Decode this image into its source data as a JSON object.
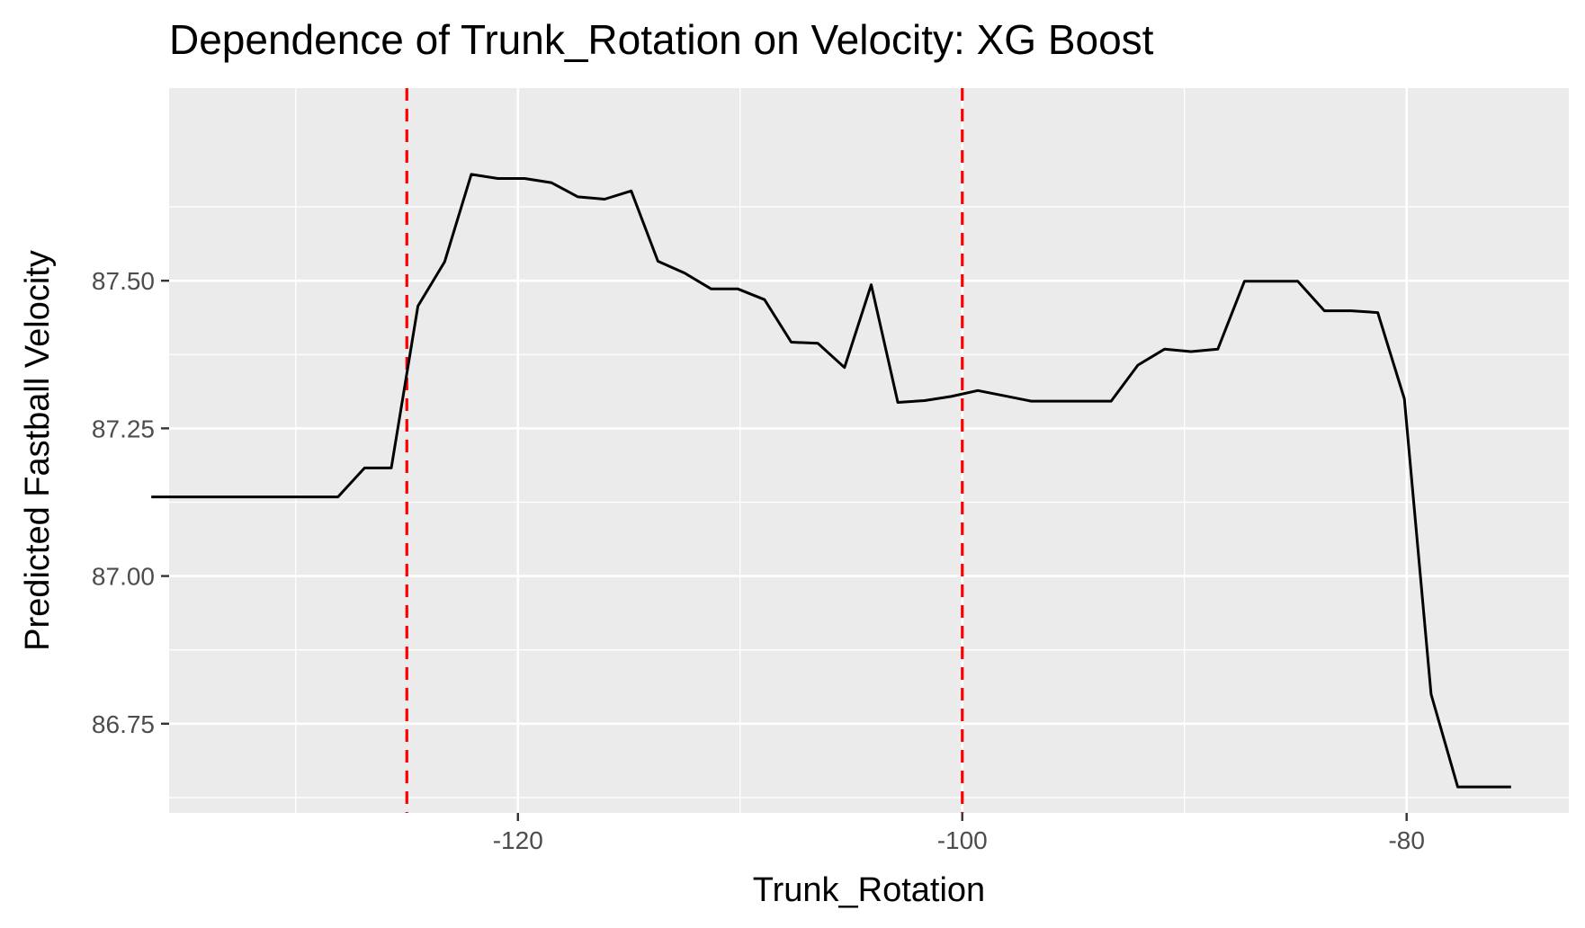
{
  "chart_data": {
    "type": "line",
    "title": "Dependence of Trunk_Rotation on Velocity: XG Boost",
    "xlabel": "Trunk_Rotation",
    "ylabel": "Predicted Fastball Velocity",
    "xlim": [
      -135.7,
      -72.7
    ],
    "ylim": [
      86.599,
      87.826
    ],
    "x_ticks": [
      -120,
      -100,
      -80
    ],
    "x_tick_labels": [
      "-120",
      "-100",
      "-80"
    ],
    "x_minor_ticks": [
      -130,
      -110,
      -90
    ],
    "y_ticks": [
      86.75,
      87.0,
      87.25,
      87.5
    ],
    "y_tick_labels": [
      "86.75",
      "87.00",
      "87.25",
      "87.50"
    ],
    "y_minor_ticks": [
      86.625,
      86.875,
      87.125,
      87.375,
      87.625
    ],
    "grid": true,
    "panel_background": "#ebebeb",
    "grid_color": "#ffffff",
    "line_color": "#000000",
    "vline_color": "#ff0000",
    "vlines": [
      -125,
      -100
    ],
    "series": [
      {
        "x": [
          -136.5,
          -135.3,
          -134.1,
          -132.9,
          -131.7,
          -130.5,
          -129.3,
          -128.1,
          -126.9,
          -125.7,
          -124.5,
          -123.3,
          -122.1,
          -120.9,
          -119.7,
          -118.5,
          -117.3,
          -116.1,
          -114.9,
          -113.7,
          -112.5,
          -111.3,
          -110.1,
          -108.9,
          -107.7,
          -106.5,
          -105.3,
          -104.1,
          -102.9,
          -101.7,
          -100.5,
          -99.3,
          -98.1,
          -96.9,
          -95.7,
          -94.5,
          -93.3,
          -92.1,
          -90.9,
          -89.7,
          -88.5,
          -87.3,
          -86.1,
          -84.9,
          -83.7,
          -82.5,
          -81.3,
          -80.1,
          -78.9,
          -77.7,
          -76.5,
          -75.3
        ],
        "y": [
          87.134,
          87.134,
          87.134,
          87.134,
          87.134,
          87.134,
          87.134,
          87.134,
          87.183,
          87.183,
          87.457,
          87.532,
          87.68,
          87.673,
          87.673,
          87.666,
          87.642,
          87.638,
          87.652,
          87.533,
          87.513,
          87.486,
          87.486,
          87.468,
          87.396,
          87.394,
          87.353,
          87.493,
          87.294,
          87.297,
          87.304,
          87.314,
          87.305,
          87.296,
          87.296,
          87.296,
          87.296,
          87.357,
          87.384,
          87.38,
          87.384,
          87.499,
          87.499,
          87.499,
          87.449,
          87.449,
          87.446,
          87.3,
          86.8,
          86.643,
          86.643,
          86.643
        ]
      }
    ]
  }
}
